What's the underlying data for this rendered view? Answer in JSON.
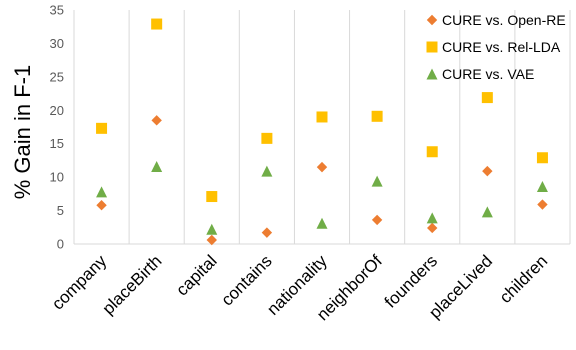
{
  "chart_data": {
    "type": "scatter",
    "title": "",
    "xlabel": "",
    "ylabel": "% Gain in F-1",
    "categories": [
      "company",
      "placeBirth",
      "capital",
      "contains",
      "nationality",
      "neighborOf",
      "founders",
      "placeLived",
      "children"
    ],
    "ylim": [
      0,
      35
    ],
    "yticks": [
      0,
      5,
      10,
      15,
      20,
      25,
      30,
      35
    ],
    "grid": "vertical category gridlines",
    "legend_position": "top-right",
    "series": [
      {
        "name": "CURE vs. Open-RE",
        "marker": "diamond",
        "color": "#ED7D31",
        "values": [
          5.8,
          18.5,
          0.6,
          1.7,
          11.5,
          3.6,
          2.4,
          10.9,
          5.9
        ]
      },
      {
        "name": "CURE vs. Rel-LDA",
        "marker": "square",
        "color": "#FFC000",
        "values": [
          17.3,
          32.9,
          7.1,
          15.8,
          19.0,
          19.1,
          13.8,
          21.9,
          12.9
        ]
      },
      {
        "name": "CURE vs. VAE",
        "marker": "triangle",
        "color": "#70AD47",
        "values": [
          7.8,
          11.6,
          2.2,
          10.9,
          3.1,
          9.4,
          3.9,
          4.8,
          8.6
        ]
      }
    ]
  }
}
